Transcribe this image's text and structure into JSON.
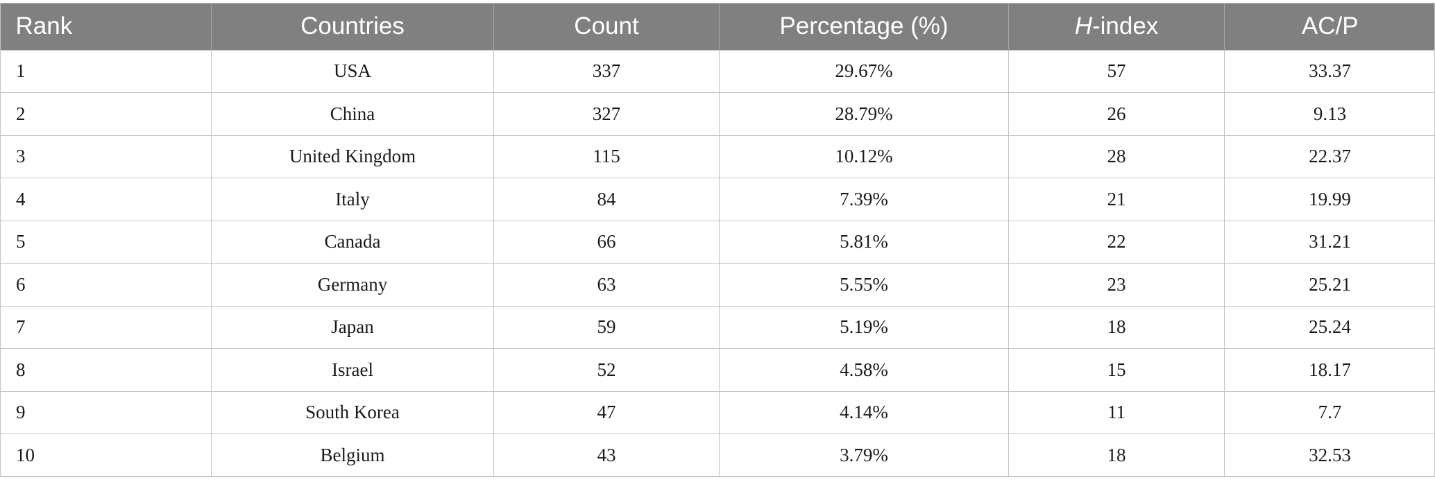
{
  "table": {
    "headers": {
      "rank": "Rank",
      "countries": "Countries",
      "count": "Count",
      "percentage": "Percentage (%)",
      "hindex_italic": "H",
      "hindex_rest": "-index",
      "acp": "AC/P"
    },
    "rows": [
      [
        "1",
        "USA",
        "337",
        "29.67%",
        "57",
        "33.37"
      ],
      [
        "2",
        "China",
        "327",
        "28.79%",
        "26",
        "9.13"
      ],
      [
        "3",
        "United Kingdom",
        "115",
        "10.12%",
        "28",
        "22.37"
      ],
      [
        "4",
        "Italy",
        "84",
        "7.39%",
        "21",
        "19.99"
      ],
      [
        "5",
        "Canada",
        "66",
        "5.81%",
        "22",
        "31.21"
      ],
      [
        "6",
        "Germany",
        "63",
        "5.55%",
        "23",
        "25.21"
      ],
      [
        "7",
        "Japan",
        "59",
        "5.19%",
        "18",
        "25.24"
      ],
      [
        "8",
        "Israel",
        "52",
        "4.58%",
        "15",
        "18.17"
      ],
      [
        "9",
        "South Korea",
        "47",
        "4.14%",
        "11",
        "7.7"
      ],
      [
        "10",
        "Belgium",
        "43",
        "3.79%",
        "18",
        "32.53"
      ]
    ]
  },
  "colors": {
    "header_bg": "#7f807f",
    "header_text": "#ffffff",
    "grid": "#c4c4c4"
  }
}
